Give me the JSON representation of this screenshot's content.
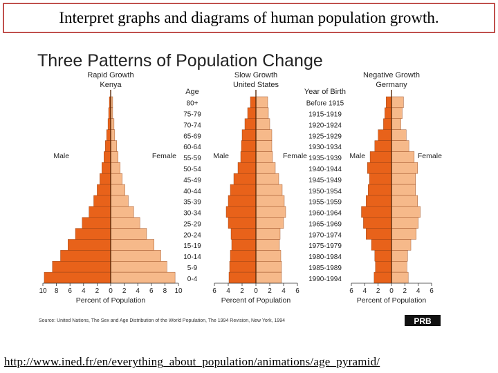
{
  "slide": {
    "title": "Interpret graphs and diagrams of human population growth.",
    "url": "http://www.ined.fr/en/everything_about_population/animations/age_pyramid/"
  },
  "figure": {
    "title": "Three Patterns of Population Change",
    "source": "Source: United Nations, The Sex and Age Distribution of the World Population, The 1994 Revision, New York, 1994",
    "logo_text": "PRB",
    "age_header": "Age",
    "birth_header": "Year of Birth",
    "male_label": "Male",
    "female_label": "Female",
    "xlabel": "Percent of Population",
    "colors": {
      "male": "#e8621a",
      "female": "#f6b98a",
      "outline": "#8a3a10"
    }
  },
  "chart_data": [
    {
      "type": "bar",
      "subtitle": "Rapid Growth",
      "country": "Kenya",
      "categories": [
        "80+",
        "75-79",
        "70-74",
        "65-69",
        "60-64",
        "55-59",
        "50-54",
        "45-49",
        "40-44",
        "35-39",
        "30-34",
        "25-29",
        "20-24",
        "15-19",
        "10-14",
        "5-9",
        "0-4"
      ],
      "series": [
        {
          "name": "Male",
          "values": [
            0.2,
            0.3,
            0.4,
            0.6,
            0.8,
            1.0,
            1.3,
            1.6,
            2.0,
            2.5,
            3.2,
            4.2,
            5.2,
            6.3,
            7.4,
            8.6,
            9.8
          ]
        },
        {
          "name": "Female",
          "values": [
            0.3,
            0.3,
            0.5,
            0.6,
            0.9,
            1.1,
            1.4,
            1.7,
            2.1,
            2.6,
            3.4,
            4.3,
            5.3,
            6.4,
            7.4,
            8.3,
            9.5
          ]
        }
      ],
      "xticks": [
        "10",
        "8",
        "6",
        "4",
        "2",
        "0",
        "2",
        "4",
        "6",
        "8",
        "10"
      ],
      "xlim": [
        -10,
        10
      ]
    },
    {
      "type": "bar",
      "subtitle": "Slow Growth",
      "country": "United States",
      "categories": [
        "80+",
        "75-79",
        "70-74",
        "65-69",
        "60-64",
        "55-59",
        "50-54",
        "45-49",
        "40-44",
        "35-39",
        "30-34",
        "25-29",
        "20-24",
        "15-19",
        "10-14",
        "5-9",
        "0-4"
      ],
      "series": [
        {
          "name": "Male",
          "values": [
            0.8,
            1.2,
            1.6,
            2.0,
            2.1,
            2.2,
            2.6,
            3.2,
            3.7,
            4.0,
            4.3,
            4.0,
            3.6,
            3.5,
            3.7,
            3.8,
            3.9
          ]
        },
        {
          "name": "Female",
          "values": [
            1.7,
            1.8,
            2.0,
            2.3,
            2.3,
            2.4,
            2.8,
            3.3,
            3.8,
            4.1,
            4.3,
            4.0,
            3.5,
            3.4,
            3.6,
            3.7,
            3.7
          ]
        }
      ],
      "xticks": [
        "6",
        "4",
        "2",
        "0",
        "2",
        "4",
        "6"
      ],
      "xlim": [
        -6,
        6
      ]
    },
    {
      "type": "bar",
      "subtitle": "Negative Growth",
      "country": "Germany",
      "categories": [
        "80+",
        "75-79",
        "70-74",
        "65-69",
        "60-64",
        "55-59",
        "50-54",
        "45-49",
        "40-44",
        "35-39",
        "30-34",
        "25-29",
        "20-24",
        "15-19",
        "10-14",
        "5-9",
        "0-4"
      ],
      "series": [
        {
          "name": "Male",
          "values": [
            0.8,
            1.0,
            1.2,
            2.0,
            2.5,
            3.2,
            3.6,
            3.3,
            3.5,
            3.8,
            4.5,
            4.2,
            3.8,
            3.0,
            2.5,
            2.4,
            2.6
          ]
        },
        {
          "name": "Female",
          "values": [
            1.8,
            1.6,
            1.4,
            2.2,
            2.6,
            3.4,
            3.9,
            3.6,
            3.6,
            3.9,
            4.3,
            4.0,
            3.7,
            2.9,
            2.4,
            2.3,
            2.5
          ]
        }
      ],
      "xticks": [
        "6",
        "4",
        "2",
        "0",
        "2",
        "4",
        "6"
      ],
      "xlim": [
        -6,
        6
      ]
    }
  ],
  "birth_years": [
    "Before 1915",
    "1915-1919",
    "1920-1924",
    "1925-1929",
    "1930-1934",
    "1935-1939",
    "1940-1944",
    "1945-1949",
    "1950-1954",
    "1955-1959",
    "1960-1964",
    "1965-1969",
    "1970-1974",
    "1975-1979",
    "1980-1984",
    "1985-1989",
    "1990-1994"
  ]
}
